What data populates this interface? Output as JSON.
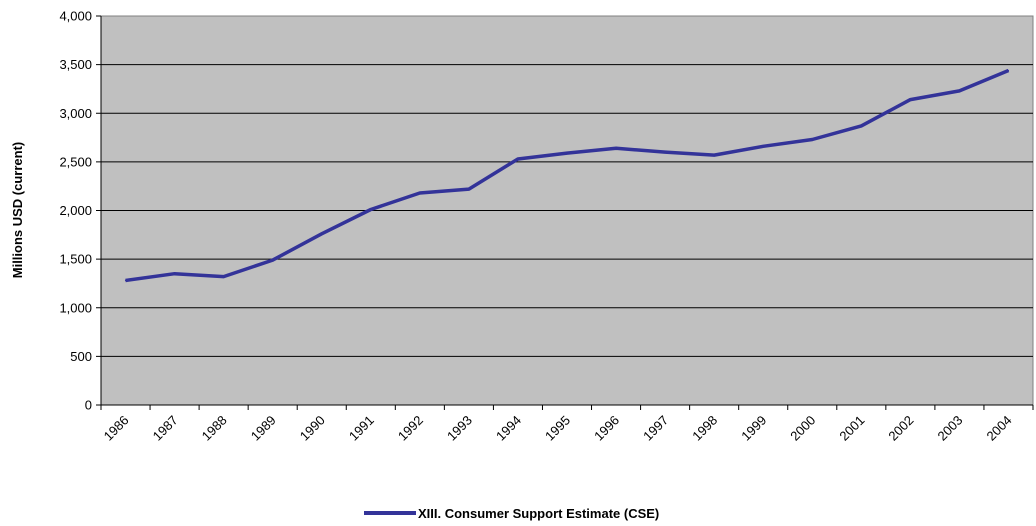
{
  "chart_data": {
    "type": "line",
    "x": [
      "1986",
      "1987",
      "1988",
      "1989",
      "1990",
      "1991",
      "1992",
      "1993",
      "1994",
      "1995",
      "1996",
      "1997",
      "1998",
      "1999",
      "2000",
      "2001",
      "2002",
      "2003",
      "2004"
    ],
    "series": [
      {
        "name": "XIII.  Consumer Support Estimate (CSE)",
        "values": [
          1280,
          1350,
          1320,
          1490,
          1760,
          2010,
          2180,
          2220,
          2530,
          2590,
          2640,
          2600,
          2570,
          2660,
          2730,
          2870,
          3140,
          3230,
          3440
        ],
        "color": "#333399"
      }
    ],
    "title": "",
    "xlabel": "",
    "ylabel": "Millions USD (current)",
    "ylim": [
      0,
      4000
    ],
    "yticks": [
      0,
      500,
      1000,
      1500,
      2000,
      2500,
      3000,
      3500,
      4000
    ],
    "ytick_labels": [
      "0",
      "500",
      "1,000",
      "1,500",
      "2,000",
      "2,500",
      "3,000",
      "3,500",
      "4,000"
    ],
    "grid": "horizontal",
    "legend": "bottom",
    "plot_background": "#c0c0c0"
  }
}
